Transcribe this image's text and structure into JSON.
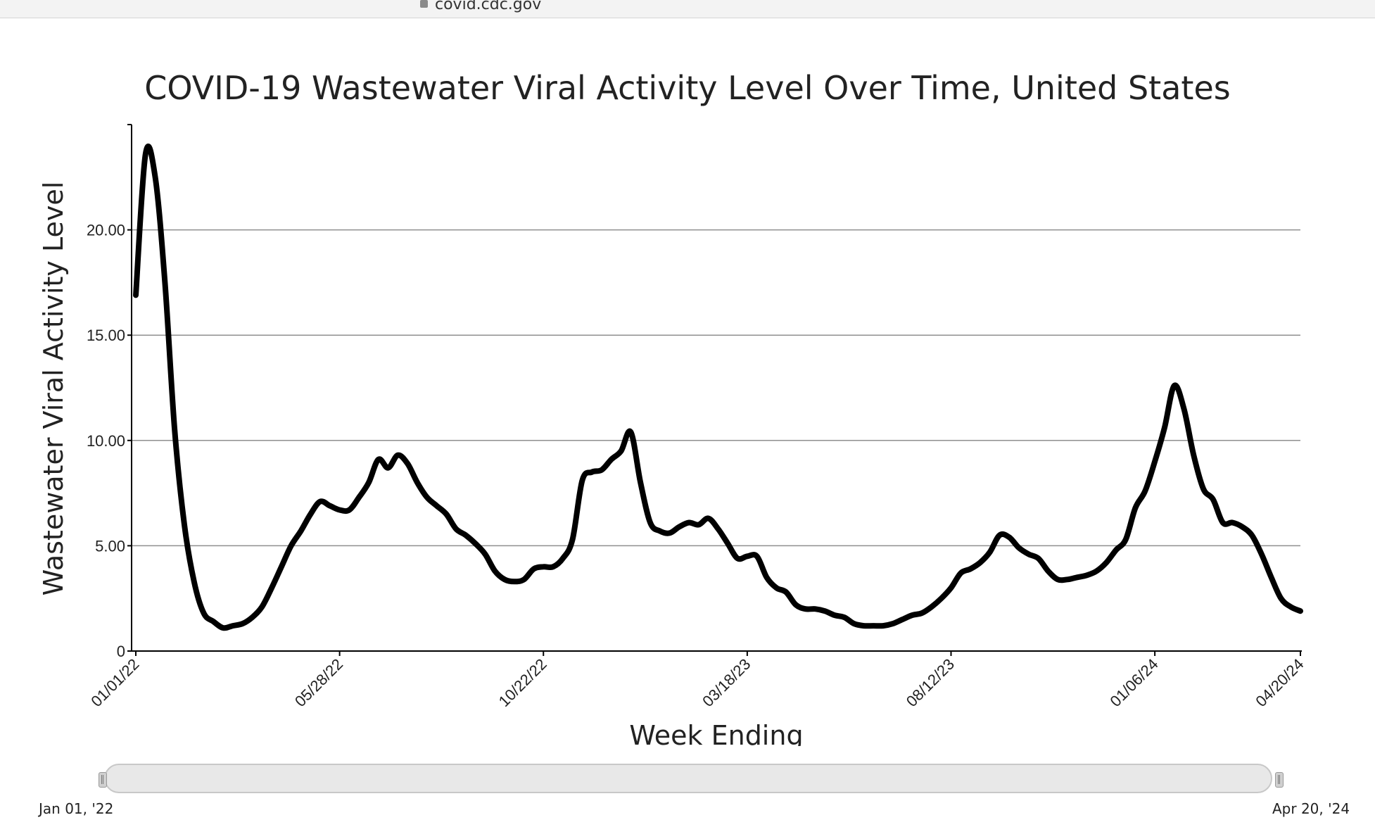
{
  "browser": {
    "url": "covid.cdc.gov"
  },
  "range_slider": {
    "start_label": "Jan 01, '22",
    "end_label": "Apr 20, '24"
  },
  "chart_data": {
    "type": "line",
    "title": "COVID-19 Wastewater Viral Activity Level Over Time, United States",
    "xlabel": "Week Ending",
    "ylabel": "Wastewater Viral Activity Level",
    "ylim": [
      0,
      25
    ],
    "xlim": [
      "2022-01-01",
      "2024-04-20"
    ],
    "yticks": [
      {
        "value": 0,
        "label": "0"
      },
      {
        "value": 5,
        "label": "5.00"
      },
      {
        "value": 10,
        "label": "10.00"
      },
      {
        "value": 15,
        "label": "15.00"
      },
      {
        "value": 20,
        "label": "20.00"
      }
    ],
    "xticks": [
      {
        "value": "2022-01-01",
        "label": "01/01/22"
      },
      {
        "value": "2022-05-28",
        "label": "05/28/22"
      },
      {
        "value": "2022-10-22",
        "label": "10/22/22"
      },
      {
        "value": "2023-03-18",
        "label": "03/18/23"
      },
      {
        "value": "2023-08-12",
        "label": "08/12/23"
      },
      {
        "value": "2024-01-06",
        "label": "01/06/24"
      },
      {
        "value": "2024-04-20",
        "label": "04/20/24"
      }
    ],
    "grid": true,
    "line_color": "#000000",
    "series": [
      {
        "x": [
          "2022-01-01",
          "2022-01-08",
          "2022-01-15",
          "2022-01-22",
          "2022-01-29",
          "2022-02-05",
          "2022-02-12",
          "2022-02-19",
          "2022-02-26",
          "2022-03-05",
          "2022-03-12",
          "2022-03-19",
          "2022-03-26",
          "2022-04-02",
          "2022-04-09",
          "2022-04-16",
          "2022-04-23",
          "2022-04-30",
          "2022-05-07",
          "2022-05-14",
          "2022-05-21",
          "2022-05-28",
          "2022-06-04",
          "2022-06-11",
          "2022-06-18",
          "2022-06-25",
          "2022-07-02",
          "2022-07-09",
          "2022-07-16",
          "2022-07-23",
          "2022-07-30",
          "2022-08-06",
          "2022-08-13",
          "2022-08-20",
          "2022-08-27",
          "2022-09-03",
          "2022-09-10",
          "2022-09-17",
          "2022-09-24",
          "2022-10-01",
          "2022-10-08",
          "2022-10-15",
          "2022-10-22",
          "2022-10-29",
          "2022-11-05",
          "2022-11-12",
          "2022-11-19",
          "2022-11-26",
          "2022-12-03",
          "2022-12-10",
          "2022-12-17",
          "2022-12-24",
          "2022-12-31",
          "2023-01-07",
          "2023-01-14",
          "2023-01-21",
          "2023-01-28",
          "2023-02-04",
          "2023-02-11",
          "2023-02-18",
          "2023-02-25",
          "2023-03-04",
          "2023-03-11",
          "2023-03-18",
          "2023-03-25",
          "2023-04-01",
          "2023-04-08",
          "2023-04-15",
          "2023-04-22",
          "2023-04-29",
          "2023-05-06",
          "2023-05-13",
          "2023-05-20",
          "2023-05-27",
          "2023-06-03",
          "2023-06-10",
          "2023-06-17",
          "2023-06-24",
          "2023-07-01",
          "2023-07-08",
          "2023-07-15",
          "2023-07-22",
          "2023-07-29",
          "2023-08-05",
          "2023-08-12",
          "2023-08-19",
          "2023-08-26",
          "2023-09-02",
          "2023-09-09",
          "2023-09-16",
          "2023-09-23",
          "2023-09-30",
          "2023-10-07",
          "2023-10-14",
          "2023-10-21",
          "2023-10-28",
          "2023-11-04",
          "2023-11-11",
          "2023-11-18",
          "2023-11-25",
          "2023-12-02",
          "2023-12-09",
          "2023-12-16",
          "2023-12-23",
          "2023-12-30",
          "2024-01-06",
          "2024-01-13",
          "2024-01-20",
          "2024-01-27",
          "2024-02-03",
          "2024-02-10",
          "2024-02-17",
          "2024-02-24",
          "2024-03-02",
          "2024-03-09",
          "2024-03-16",
          "2024-03-23",
          "2024-03-30",
          "2024-04-06",
          "2024-04-13",
          "2024-04-20"
        ],
        "y": [
          16.9,
          23.6,
          22.5,
          17.5,
          10.5,
          6.0,
          3.3,
          1.8,
          1.4,
          1.1,
          1.2,
          1.3,
          1.6,
          2.1,
          3.0,
          4.0,
          5.0,
          5.7,
          6.5,
          7.1,
          6.9,
          6.7,
          6.7,
          7.3,
          8.0,
          9.1,
          8.7,
          9.3,
          8.9,
          8.0,
          7.3,
          6.9,
          6.5,
          5.8,
          5.5,
          5.1,
          4.6,
          3.8,
          3.4,
          3.3,
          3.4,
          3.9,
          4.0,
          4.0,
          4.4,
          5.3,
          8.1,
          8.5,
          8.6,
          9.1,
          9.5,
          10.4,
          8.0,
          6.1,
          5.7,
          5.6,
          5.9,
          6.1,
          6.0,
          6.3,
          5.8,
          5.1,
          4.4,
          4.5,
          4.5,
          3.5,
          3.0,
          2.8,
          2.2,
          2.0,
          2.0,
          1.9,
          1.7,
          1.6,
          1.3,
          1.2,
          1.2,
          1.2,
          1.3,
          1.5,
          1.7,
          1.8,
          2.1,
          2.5,
          3.0,
          3.7,
          3.9,
          4.2,
          4.7,
          5.5,
          5.4,
          4.9,
          4.6,
          4.4,
          3.8,
          3.4,
          3.4,
          3.5,
          3.6,
          3.8,
          4.2,
          4.8,
          5.3,
          6.8,
          7.6,
          9.0,
          10.6,
          12.6,
          11.5,
          9.3,
          7.7,
          7.2,
          6.1,
          6.1,
          5.9,
          5.5,
          4.6,
          3.5,
          2.5,
          2.1,
          1.9
        ]
      }
    ]
  }
}
